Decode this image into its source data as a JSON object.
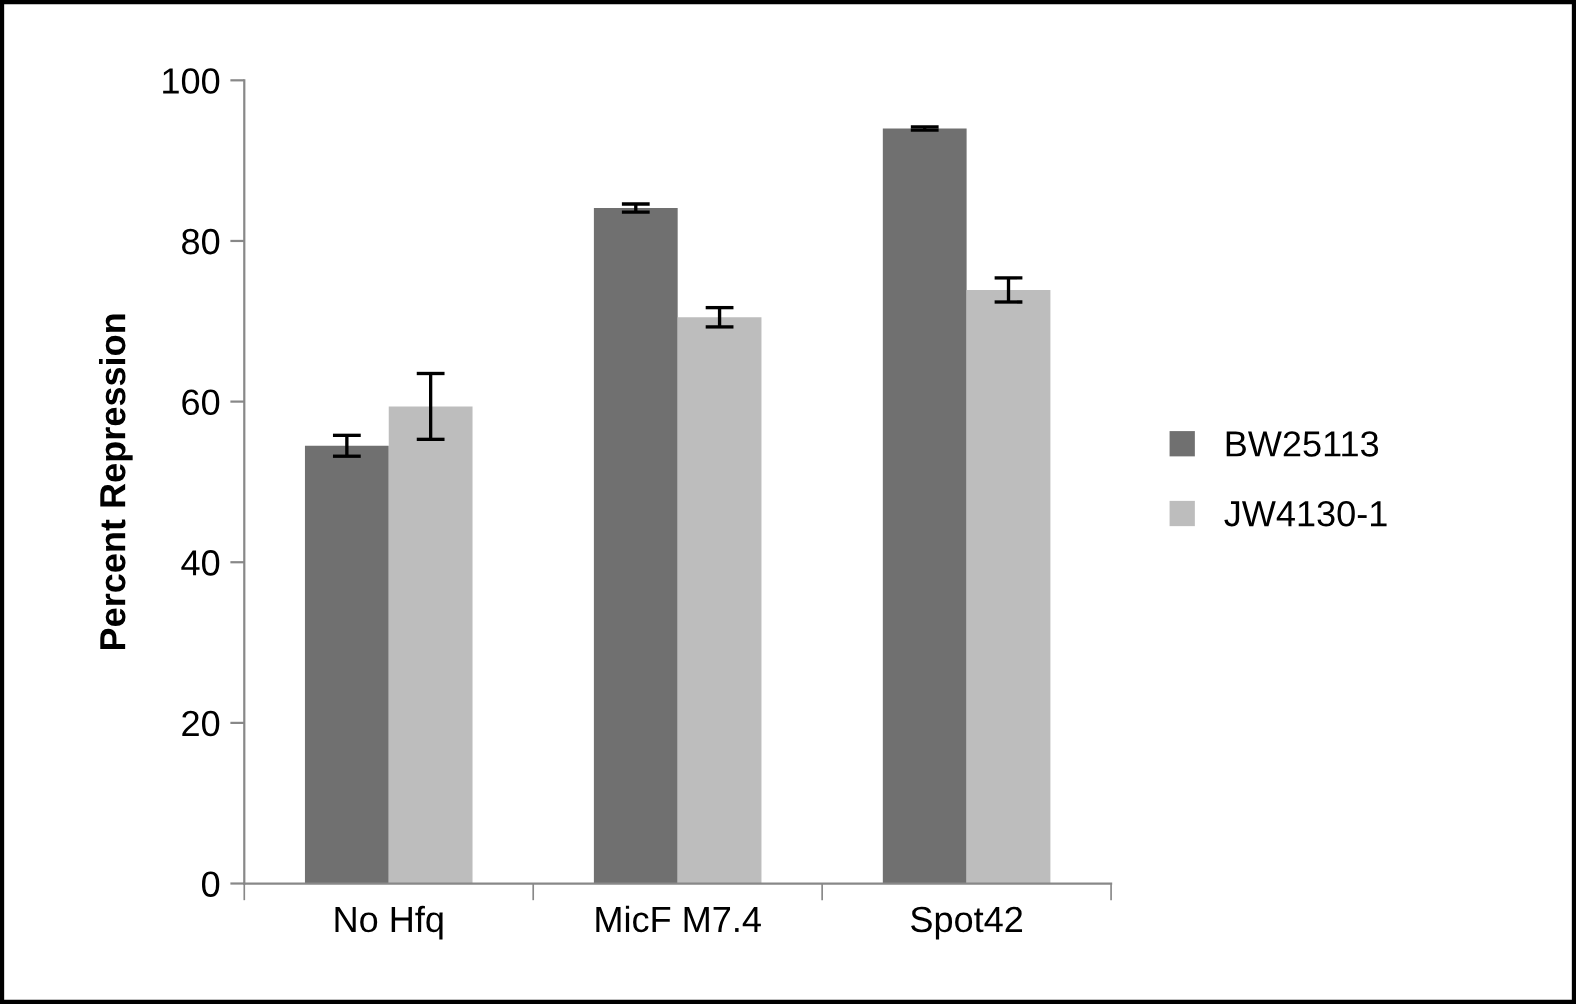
{
  "chart_data": {
    "type": "bar",
    "ylabel": "Percent Repression",
    "categories": [
      "No Hfq",
      "MicF M7.4",
      "Spot42"
    ],
    "series": [
      {
        "name": "BW25113",
        "color": "#707070",
        "values": [
          54.5,
          84.1,
          94.0
        ],
        "errors": [
          1.3,
          0.5,
          0.2
        ]
      },
      {
        "name": "JW4130-1",
        "color": "#bdbdbd",
        "values": [
          59.4,
          70.5,
          73.9
        ],
        "errors": [
          4.1,
          1.2,
          1.5
        ]
      }
    ],
    "ylim": [
      0,
      100
    ],
    "yticks": [
      0,
      20,
      40,
      60,
      80,
      100
    ],
    "grid": false,
    "legend": "right"
  }
}
